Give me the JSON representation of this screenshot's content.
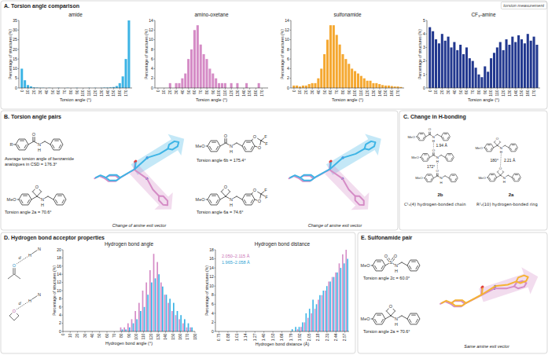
{
  "chart_data": [
    {
      "type": "bar",
      "title": "amide",
      "x_label": "Torsion angle (°)",
      "y_label": "Percentage of structures (%)",
      "x": [
        0,
        5,
        10,
        15,
        20,
        25,
        30,
        35,
        40,
        45,
        50,
        55,
        60,
        65,
        70,
        75,
        80,
        85,
        90,
        95,
        100,
        105,
        110,
        115,
        120,
        125,
        130,
        135,
        140,
        145,
        150,
        155,
        160,
        165,
        170,
        175
      ],
      "values": [
        10,
        4,
        1.5,
        0.8,
        0.3,
        0.2,
        0.1,
        0.1,
        0,
        0.1,
        0,
        0,
        0.1,
        0,
        0,
        0.1,
        0,
        0,
        0.1,
        0,
        0,
        0,
        0.1,
        0,
        0.1,
        0,
        0.1,
        0.2,
        0.2,
        0.3,
        0.5,
        1,
        2.5,
        6,
        15,
        35
      ],
      "color": "#3db4e5",
      "xlim": [
        -5,
        180
      ],
      "xticks": [
        0,
        10,
        20,
        30,
        40,
        50,
        60,
        70,
        80,
        90,
        100,
        110,
        120,
        130,
        140,
        150,
        160,
        170
      ],
      "ylim": [
        0,
        35
      ],
      "yticks": [
        0,
        5,
        10,
        15,
        20,
        25,
        30,
        35
      ]
    },
    {
      "type": "bar",
      "title": "amino-oxetane",
      "x_label": "Torsion angle (°)",
      "y_label": "Percentage of structures (%)",
      "x": [
        0,
        5,
        10,
        15,
        20,
        25,
        30,
        35,
        40,
        45,
        50,
        55,
        60,
        65,
        70,
        75,
        80,
        85,
        90,
        95,
        100,
        105,
        110,
        115,
        120,
        125,
        130,
        135,
        140,
        145,
        150,
        155,
        160,
        165,
        170,
        175
      ],
      "values": [
        0,
        0,
        0,
        0,
        1,
        0,
        1,
        1,
        2,
        3,
        6,
        8,
        12,
        13,
        9,
        7,
        6,
        4,
        3,
        2,
        1,
        1,
        1,
        0,
        1,
        0,
        1,
        0,
        0,
        1,
        0,
        0,
        0,
        1,
        0,
        0
      ],
      "color": "#d58cc6",
      "xlim": [
        -5,
        180
      ],
      "xticks": [
        0,
        10,
        20,
        30,
        40,
        50,
        60,
        70,
        80,
        90,
        100,
        110,
        120,
        130,
        140,
        150,
        160,
        170
      ],
      "ylim": [
        0,
        14
      ],
      "yticks": [
        0,
        2,
        4,
        6,
        8,
        10,
        12,
        14
      ]
    },
    {
      "type": "bar",
      "title": "sulfonamide",
      "x_label": "Torsion angle (°)",
      "y_label": "Percentage of structures (%)",
      "x": [
        0,
        5,
        10,
        15,
        20,
        25,
        30,
        35,
        40,
        45,
        50,
        55,
        60,
        65,
        70,
        75,
        80,
        85,
        90,
        95,
        100,
        105,
        110,
        115,
        120,
        125,
        130,
        135,
        140,
        145,
        150,
        155,
        160,
        165,
        170,
        175
      ],
      "values": [
        0.5,
        0.5,
        0.3,
        0.5,
        0.5,
        0.8,
        1,
        1,
        2,
        4,
        7,
        10,
        13,
        13,
        11,
        9,
        7,
        6,
        5,
        4,
        3.5,
        3,
        2.5,
        2,
        1.5,
        1.5,
        1,
        1,
        0.8,
        0.6,
        0.5,
        0.5,
        0.4,
        0.3,
        0.3,
        0.2
      ],
      "color": "#f5a831",
      "xlim": [
        -5,
        180
      ],
      "xticks": [
        0,
        10,
        20,
        30,
        40,
        50,
        60,
        70,
        80,
        90,
        100,
        110,
        120,
        130,
        140,
        150,
        160,
        170
      ],
      "ylim": [
        0,
        14
      ],
      "yticks": [
        0,
        2,
        4,
        6,
        8,
        10,
        12,
        14
      ]
    },
    {
      "type": "bar",
      "title": "CF₃-amine",
      "x_label": "Torsion angle (°)",
      "y_label": "Percentage of structures (%)",
      "x": [
        0,
        5,
        10,
        15,
        20,
        25,
        30,
        35,
        40,
        45,
        50,
        55,
        60,
        65,
        70,
        75,
        80,
        85,
        90,
        95,
        100,
        105,
        110,
        115,
        120,
        125,
        130,
        135,
        140,
        145,
        150,
        155,
        160,
        165,
        170,
        175
      ],
      "values": [
        4.5,
        4.2,
        3.6,
        3.3,
        4,
        3.5,
        3.8,
        3,
        3.4,
        2.8,
        3.2,
        2.5,
        3,
        2.2,
        2,
        1.5,
        1,
        0.8,
        1.6,
        1.2,
        2.2,
        2.6,
        3,
        3.4,
        2.8,
        3.6,
        3.2,
        3.8,
        3.4,
        3.9,
        3.6,
        3.3,
        4,
        3.5,
        3.8,
        3.2
      ],
      "color": "#22388f",
      "xlim": [
        -5,
        180
      ],
      "xticks": [
        0,
        10,
        20,
        30,
        40,
        50,
        60,
        70,
        80,
        90,
        100,
        110,
        120,
        130,
        140,
        150,
        160,
        170
      ],
      "ylim": [
        0,
        5
      ],
      "yticks": [
        0,
        1,
        2,
        3,
        4,
        5
      ]
    },
    {
      "type": "bar",
      "title": "Hydrogen bond angle",
      "x_label": "Hydrogen bond angle (°)",
      "y_label": "Percentage of structures (%)",
      "x": [
        80,
        85,
        90,
        95,
        100,
        105,
        110,
        115,
        120,
        125,
        130,
        135,
        140,
        145,
        150,
        155,
        160,
        165,
        170,
        175
      ],
      "series": [
        {
          "color": "#d58cc6",
          "values": [
            1,
            1,
            2,
            3,
            5,
            7,
            10,
            12,
            15,
            19,
            17,
            12,
            9,
            7,
            5,
            4,
            3,
            2,
            1,
            1
          ]
        },
        {
          "color": "#3db4e5",
          "values": [
            0.5,
            0.5,
            1,
            2,
            3,
            5,
            6,
            9,
            12,
            13,
            14,
            11,
            9,
            8,
            7,
            5,
            4,
            3,
            2,
            1
          ]
        }
      ],
      "xlim": [
        0,
        180
      ],
      "xticks": [
        0,
        10,
        20,
        30,
        40,
        50,
        60,
        70,
        80,
        90,
        100,
        110,
        120,
        130,
        140,
        150,
        160,
        170,
        180
      ],
      "ylim": [
        0,
        20
      ],
      "yticks": [
        0,
        2,
        4,
        6,
        8,
        10,
        12,
        14,
        16,
        18,
        20
      ]
    },
    {
      "type": "bar",
      "title": "Hydrogen bond distance",
      "x_label": "Hydrogen bond distance (Å)",
      "y_label": "Percentage of structures (%)",
      "x": [
        1.65,
        1.7,
        1.75,
        1.8,
        1.85,
        1.9,
        1.95,
        2.0,
        2.05,
        2.1,
        2.15,
        2.2,
        2.25,
        2.3,
        2.35,
        2.4,
        2.45,
        2.5,
        2.55,
        2.6
      ],
      "series": [
        {
          "color": "#d58cc6",
          "values": [
            0,
            0,
            0,
            0,
            0,
            0.5,
            1,
            2,
            3,
            4,
            5,
            7,
            8,
            9,
            11,
            12,
            13,
            15,
            17,
            18
          ]
        },
        {
          "color": "#3db4e5",
          "values": [
            0,
            0,
            0,
            0.5,
            1,
            1,
            2,
            4,
            5,
            7,
            6,
            8,
            9,
            10,
            11,
            12,
            13,
            14,
            15,
            16
          ]
        }
      ],
      "xlim": [
        0.7,
        2.63
      ],
      "xticks": [
        0.75,
        0.88,
        1.01,
        1.14,
        1.27,
        {
          "value": 1.4,
          "label": "1.40"
        },
        1.53,
        1.66,
        1.79,
        1.92,
        2.05,
        2.18,
        2.31,
        2.44,
        2.57
      ],
      "ylim": [
        0,
        18
      ],
      "yticks": [
        0,
        2,
        4,
        6,
        8,
        10,
        12,
        14,
        16,
        18
      ],
      "annotations": [
        {
          "text": "2.050–2.115 Å",
          "color": "#c86fb4"
        },
        {
          "text": "1.965–2.058 Å",
          "color": "#2d9fd3"
        }
      ]
    }
  ],
  "panels": {
    "A": {
      "title": "A. Torsion angle comparison",
      "inset": "torsion measurement"
    },
    "B": {
      "title": "B. Torsion angle pairs",
      "molecules": [
        {
          "labels": [
            "R",
            "O",
            "N",
            "H"
          ],
          "caption": "Average torsion angle of benzamide analogues in CSD = 176.3°"
        },
        {
          "labels": [
            "MeO",
            "O",
            "N",
            "H"
          ],
          "caption": "Torsion angle 2a = 70.6°"
        },
        {
          "labels": [
            "MeO",
            "O",
            "N",
            "H",
            "O",
            "O",
            "F",
            "F"
          ],
          "caption": "Torsion angle 6b = 175.4°"
        },
        {
          "labels": [
            "MeO",
            "O",
            "N",
            "H",
            "O",
            "O",
            "F",
            "F"
          ],
          "caption": "Torsion angle 6a = 74.6°"
        }
      ],
      "overlay_labels": [
        "Change of amine exit vector",
        "Change of amine exit vector"
      ]
    },
    "C": {
      "title": "C. Change in H-bonding",
      "chain": {
        "molecules": [
          [
            "MeO",
            "O",
            "N",
            "H"
          ],
          [
            "MeO",
            "O",
            "N",
            "H"
          ],
          [
            "MeO",
            "O",
            "N",
            "H"
          ]
        ],
        "distance": "1.94 Å",
        "angle": "172°",
        "compound": "2b",
        "motif": "C¹₁(4) hydrogen-bonded chain"
      },
      "ring": {
        "molecules": [
          [
            "MeO",
            "O",
            "N",
            "H"
          ],
          [
            "MeO",
            "O",
            "N",
            "H"
          ]
        ],
        "distance": "2.21 Å",
        "angle": "180°",
        "compound": "2a",
        "motif": "R²₂(10) hydrogen-bonded ring"
      }
    },
    "D": {
      "title": "D. Hydrogen bond acceptor properties",
      "schematic": [
        "O",
        "d",
        "H",
        "N",
        "O",
        "d",
        "H",
        "N"
      ]
    },
    "E": {
      "title": "E. Sulfonamide pair",
      "molecules": [
        {
          "labels": [
            "MeO",
            "S",
            "O",
            "O",
            "N",
            "H"
          ],
          "caption": "Torsion angle 2c = 60.0°"
        },
        {
          "labels": [
            "MeO",
            "O",
            "N",
            "H"
          ],
          "caption": "Torsion angle 2a = 70.6°"
        }
      ],
      "overlay_label": "Same amine exit vector"
    }
  }
}
